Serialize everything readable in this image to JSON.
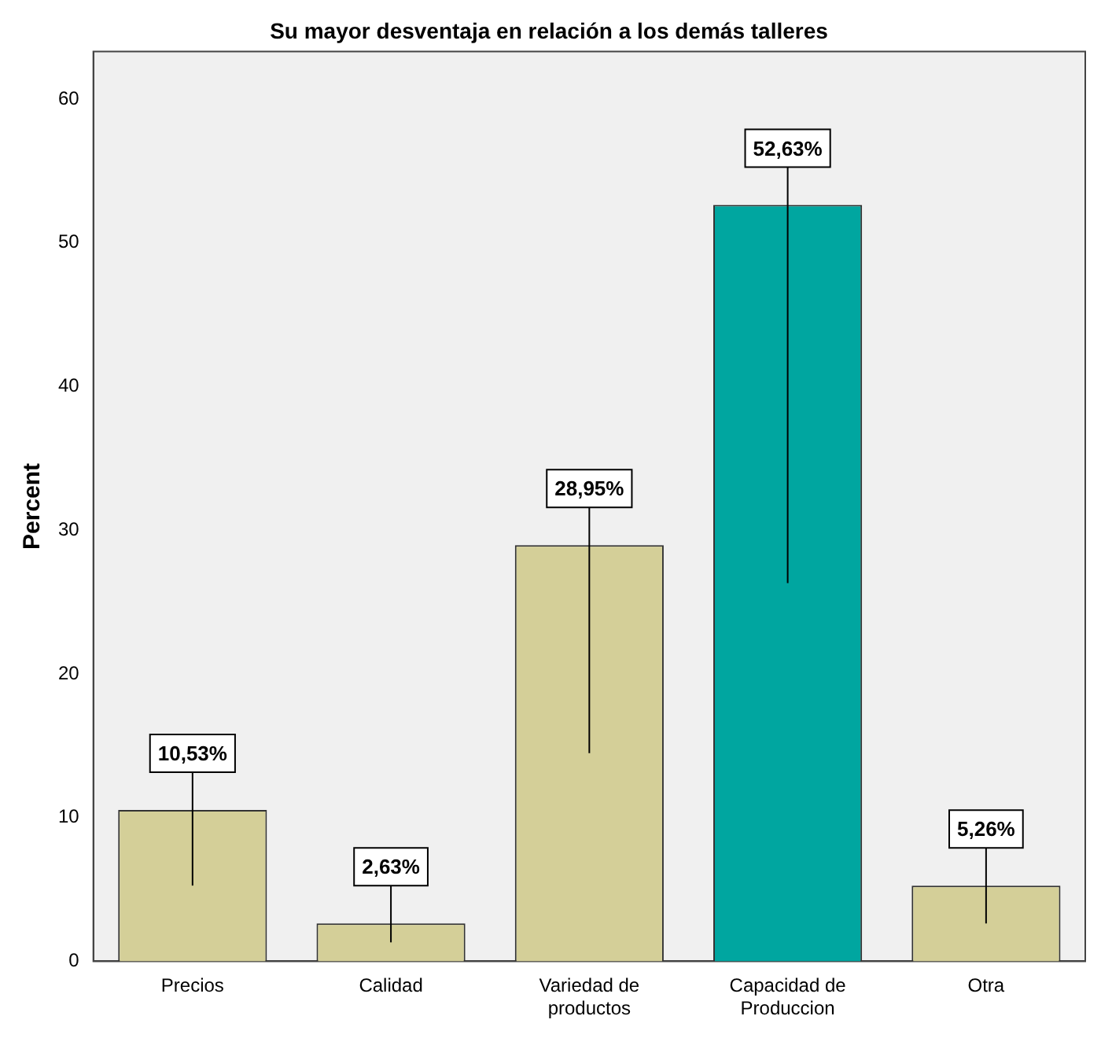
{
  "chart_data": {
    "type": "bar",
    "title": "Su mayor desventaja en relación a los demás talleres",
    "ylabel": "Percent",
    "categories": [
      "Precios",
      "Calidad",
      "Variedad de\nproductos",
      "Capacidad de\nProduccion",
      "Otra"
    ],
    "values": [
      10.53,
      2.63,
      28.95,
      52.63,
      5.26
    ],
    "colors": [
      "#d4cf98",
      "#d4cf98",
      "#d4cf98",
      "#00a6a0",
      "#d4cf98"
    ],
    "value_labels": [
      "10,53%",
      "2,63%",
      "28,95%",
      "52,63%",
      "5,26%"
    ],
    "ylim": [
      0,
      63.3
    ],
    "yticks": [
      0,
      10,
      20,
      30,
      40,
      50,
      60
    ],
    "grid": false,
    "legend": false
  }
}
